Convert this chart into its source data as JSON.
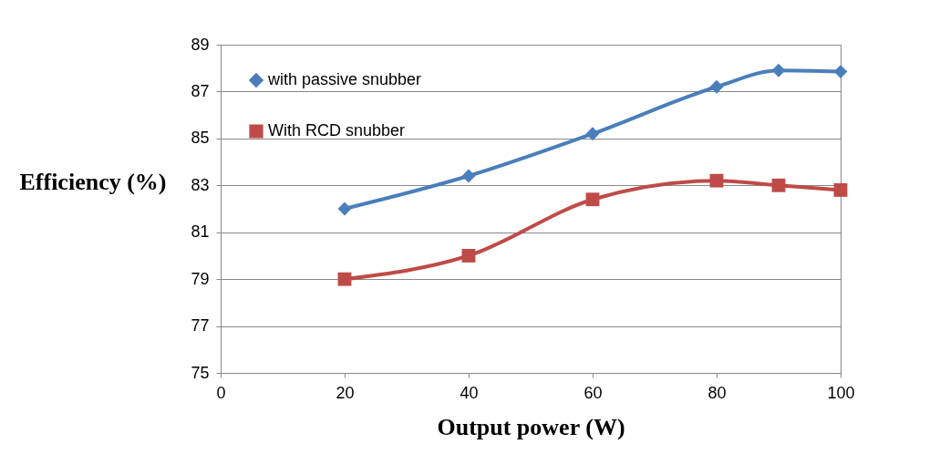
{
  "chart_data": {
    "type": "line",
    "xlabel": "Output power (W)",
    "ylabel": "Efficiency (%)",
    "x": [
      20,
      40,
      60,
      80,
      90,
      100
    ],
    "series": [
      {
        "name": "with passive snubber",
        "color": "#4a7ebb",
        "marker": "diamond",
        "values": [
          82.0,
          83.4,
          85.2,
          87.2,
          87.9,
          87.85
        ]
      },
      {
        "name": "With RCD snubber",
        "color": "#be4b48",
        "marker": "square",
        "values": [
          79.0,
          80.0,
          82.4,
          83.2,
          83.0,
          82.8
        ]
      }
    ],
    "xlim": [
      0,
      100
    ],
    "xticks": [
      0,
      20,
      40,
      60,
      80,
      100
    ],
    "ylim": [
      75,
      89
    ],
    "yticks": [
      75,
      77,
      79,
      81,
      83,
      85,
      87,
      89
    ],
    "grid": "y",
    "legend": "top left",
    "line_style": "solid"
  }
}
